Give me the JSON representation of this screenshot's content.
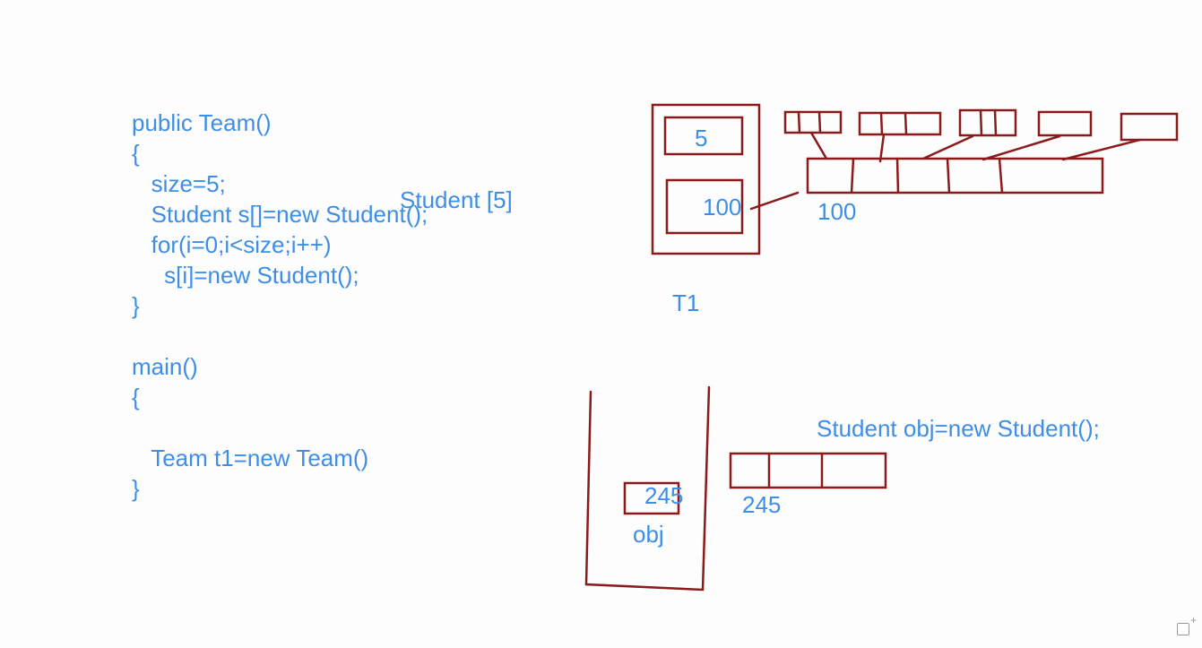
{
  "code_lines": [
    "public Team()",
    "{",
    "   size=5;",
    "   Student s[]=new Student();",
    "   for(i=0;i<size;i++)",
    "     s[i]=new Student();",
    "}",
    "",
    "main()",
    "{",
    "",
    "   Team t1=new Team()",
    "}"
  ],
  "annotations": {
    "student_array": "Student [5]",
    "size_value": "5",
    "ref_inner": "100",
    "ref_outer": "100",
    "object_label": "T1",
    "statement": "Student obj=new Student();",
    "obj_ref_inner": "245",
    "obj_ref_outer": "245",
    "obj_label": "obj"
  },
  "colors": {
    "ink": "#8b1a1a",
    "text": "#3d8ee6"
  },
  "icons": {
    "corner": "add-window-icon"
  }
}
